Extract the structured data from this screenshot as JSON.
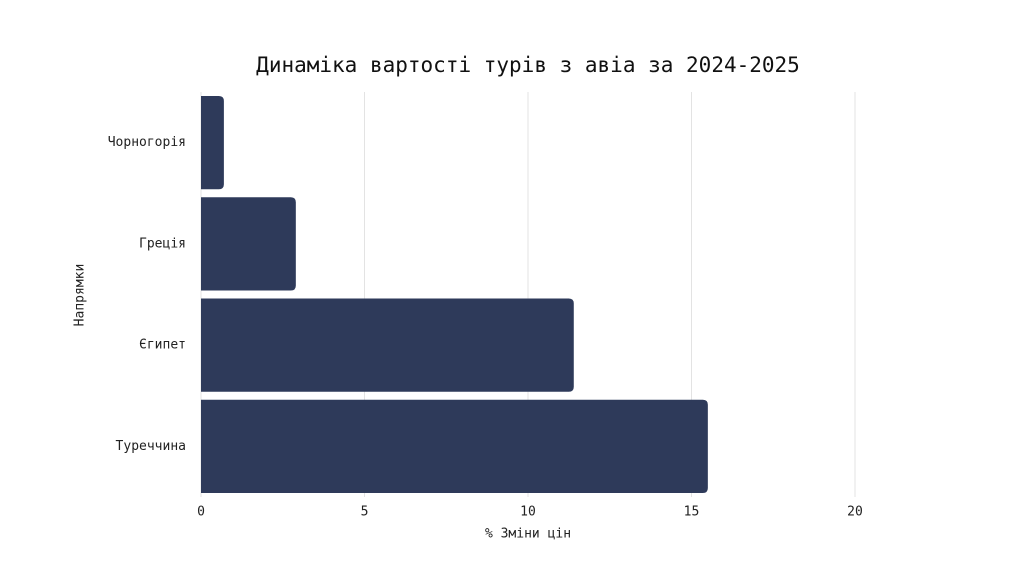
{
  "chart_data": {
    "type": "barh",
    "title": "Динаміка вартості турів з авіа за 2024-2025",
    "x_label": "% Зміни цін",
    "y_label": "Напрямки",
    "categories": [
      "Чорногорія",
      "Греція",
      "Єгипет",
      "Туреччина"
    ],
    "values": [
      0.7,
      2.9,
      11.4,
      15.5
    ],
    "color": "#2e3a5a",
    "xlim": [
      0,
      20
    ],
    "xticks": [
      0,
      5,
      10,
      15,
      20
    ],
    "grid": true
  }
}
